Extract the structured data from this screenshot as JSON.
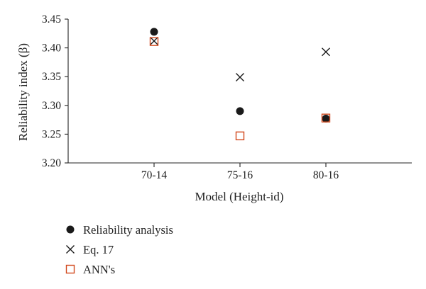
{
  "chart_data": {
    "type": "scatter",
    "title": "",
    "xlabel": "Model (Height-id)",
    "ylabel": "Reliability index (β)",
    "categories": [
      "70-14",
      "75-16",
      "80-16"
    ],
    "ylim": [
      3.2,
      3.45
    ],
    "yticks": [
      "3.20",
      "3.25",
      "3.30",
      "3.35",
      "3.40",
      "3.45"
    ],
    "grid": false,
    "legend_position": "bottom-left",
    "series": [
      {
        "name": "Reliability analysis",
        "marker": "filled-circle",
        "color": "#1a1a1a",
        "values": [
          3.428,
          3.29,
          3.277
        ]
      },
      {
        "name": "Eq. 17",
        "marker": "x-cross",
        "color": "#1a1a1a",
        "values": [
          3.412,
          3.349,
          3.393
        ]
      },
      {
        "name": "ANN's",
        "marker": "open-square",
        "color": "#d24a1e",
        "values": [
          3.411,
          3.247,
          3.278
        ]
      }
    ]
  }
}
